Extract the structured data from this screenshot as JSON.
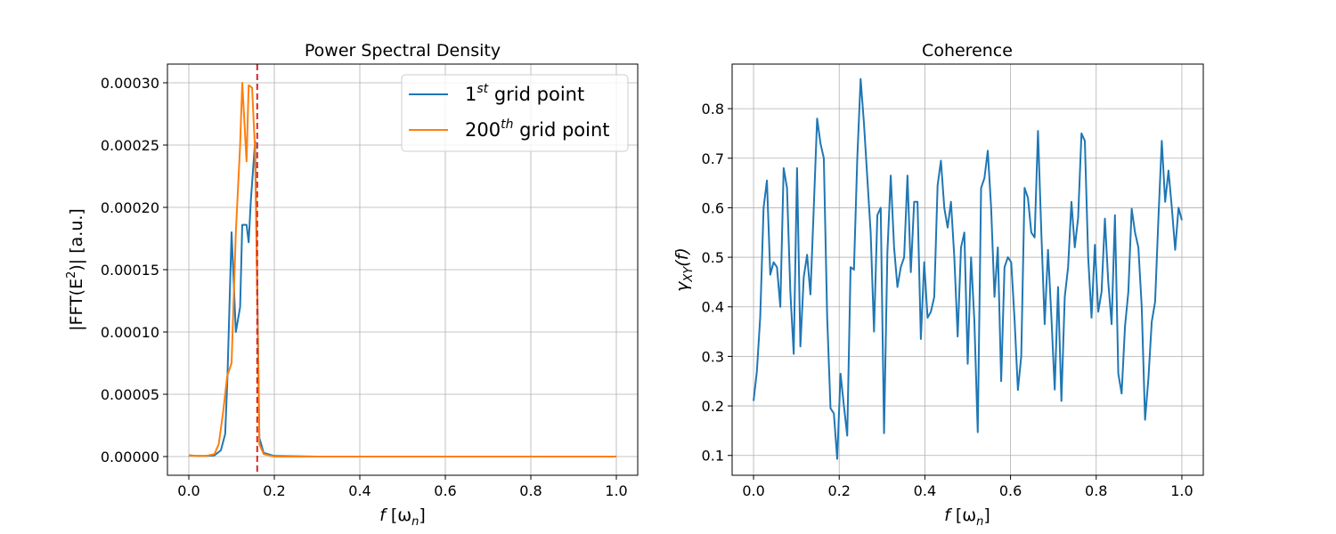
{
  "chart_data": [
    {
      "type": "line",
      "title": "Power Spectral Density",
      "xlabel": {
        "base": "f",
        "main": "[ω",
        "sub": "n",
        "end": "]"
      },
      "ylabel": {
        "pre": "|FFT(E",
        "sup": "2",
        "post": ")| [a.u.]"
      },
      "xlim": [
        -0.05,
        1.05
      ],
      "ylim": [
        -1.5e-05,
        0.000315
      ],
      "x_ticks": [
        0.0,
        0.2,
        0.4,
        0.6,
        0.8,
        1.0
      ],
      "x_tick_labels": [
        "0.0",
        "0.2",
        "0.4",
        "0.6",
        "0.8",
        "1.0"
      ],
      "y_ticks": [
        0,
        5e-05,
        0.0001,
        0.00015,
        0.0002,
        0.00025,
        0.0003
      ],
      "y_tick_labels": [
        "0.00000",
        "0.00005",
        "0.00010",
        "0.00015",
        "0.00020",
        "0.00025",
        "0.00030"
      ],
      "grid": true,
      "legend_position": "top-right",
      "vline": {
        "x": 0.16,
        "color": "#d62728",
        "style": "dashed"
      },
      "series": [
        {
          "legend": {
            "num": "1",
            "sup": "st",
            "rest": " grid point"
          },
          "color": "#1f77b4",
          "points": [
            [
              0.0,
              1e-06
            ],
            [
              0.02,
              5e-07
            ],
            [
              0.04,
              5e-07
            ],
            [
              0.06,
              1e-06
            ],
            [
              0.075,
              5e-06
            ],
            [
              0.085,
              1.8e-05
            ],
            [
              0.09,
              6e-05
            ],
            [
              0.095,
              0.00012
            ],
            [
              0.1,
              0.00018
            ],
            [
              0.11,
              0.0001
            ],
            [
              0.12,
              0.00012
            ],
            [
              0.125,
              0.000186
            ],
            [
              0.135,
              0.000186
            ],
            [
              0.14,
              0.000172
            ],
            [
              0.145,
              0.000205
            ],
            [
              0.155,
              0.000253
            ],
            [
              0.16,
              0.00014
            ],
            [
              0.165,
              1.5e-05
            ],
            [
              0.175,
              3e-06
            ],
            [
              0.2,
              5e-07
            ],
            [
              0.3,
              0.0
            ],
            [
              1.0,
              0.0
            ]
          ]
        },
        {
          "legend": {
            "num": "200",
            "sup": "th",
            "rest": " grid point"
          },
          "color": "#ff7f0e",
          "points": [
            [
              0.0,
              1e-06
            ],
            [
              0.02,
              5e-07
            ],
            [
              0.04,
              5e-07
            ],
            [
              0.06,
              2e-06
            ],
            [
              0.07,
              1e-05
            ],
            [
              0.08,
              3.5e-05
            ],
            [
              0.09,
              6.5e-05
            ],
            [
              0.1,
              7.5e-05
            ],
            [
              0.11,
              0.00018
            ],
            [
              0.12,
              0.00025
            ],
            [
              0.125,
              0.0003
            ],
            [
              0.135,
              0.000237
            ],
            [
              0.14,
              0.000298
            ],
            [
              0.148,
              0.000296
            ],
            [
              0.155,
              0.000245
            ],
            [
              0.16,
              0.00013
            ],
            [
              0.165,
              1e-05
            ],
            [
              0.175,
              2e-06
            ],
            [
              0.2,
              0.0
            ],
            [
              0.3,
              0.0
            ],
            [
              1.0,
              0.0
            ]
          ]
        }
      ]
    },
    {
      "type": "line",
      "title": "Coherence",
      "xlabel": {
        "base": "f",
        "main": "[ω",
        "sub": "n",
        "end": "]"
      },
      "ylabel": {
        "pre": "γ",
        "sub": "XY",
        "post": "(f)"
      },
      "xlim": [
        -0.05,
        1.05
      ],
      "ylim": [
        0.06,
        0.89
      ],
      "x_ticks": [
        0.0,
        0.2,
        0.4,
        0.6,
        0.8,
        1.0
      ],
      "x_tick_labels": [
        "0.0",
        "0.2",
        "0.4",
        "0.6",
        "0.8",
        "1.0"
      ],
      "y_ticks": [
        0.1,
        0.2,
        0.3,
        0.4,
        0.5,
        0.6,
        0.7,
        0.8
      ],
      "y_tick_labels": [
        "0.1",
        "0.2",
        "0.3",
        "0.4",
        "0.5",
        "0.6",
        "0.7",
        "0.8"
      ],
      "grid": true,
      "series": [
        {
          "color": "#1f77b4",
          "x_start": 0.0,
          "x_step": 0.0078125,
          "values": [
            0.21,
            0.27,
            0.38,
            0.6,
            0.655,
            0.465,
            0.49,
            0.48,
            0.4,
            0.68,
            0.64,
            0.43,
            0.305,
            0.68,
            0.32,
            0.46,
            0.505,
            0.425,
            0.6,
            0.78,
            0.73,
            0.7,
            0.38,
            0.195,
            0.185,
            0.093,
            0.265,
            0.2,
            0.14,
            0.48,
            0.475,
            0.7,
            0.86,
            0.77,
            0.66,
            0.55,
            0.35,
            0.585,
            0.6,
            0.145,
            0.51,
            0.665,
            0.52,
            0.44,
            0.48,
            0.5,
            0.665,
            0.47,
            0.612,
            0.612,
            0.335,
            0.49,
            0.378,
            0.39,
            0.42,
            0.645,
            0.695,
            0.6,
            0.56,
            0.612,
            0.5,
            0.34,
            0.52,
            0.55,
            0.285,
            0.5,
            0.37,
            0.147,
            0.64,
            0.66,
            0.715,
            0.6,
            0.42,
            0.52,
            0.25,
            0.48,
            0.5,
            0.49,
            0.375,
            0.232,
            0.3,
            0.64,
            0.62,
            0.55,
            0.54,
            0.755,
            0.55,
            0.365,
            0.515,
            0.38,
            0.233,
            0.44,
            0.21,
            0.42,
            0.48,
            0.612,
            0.52,
            0.58,
            0.75,
            0.735,
            0.5,
            0.378,
            0.525,
            0.39,
            0.43,
            0.578,
            0.45,
            0.365,
            0.585,
            0.265,
            0.225,
            0.36,
            0.43,
            0.598,
            0.55,
            0.52,
            0.4,
            0.172,
            0.255,
            0.37,
            0.41,
            0.58,
            0.735,
            0.612,
            0.675,
            0.6,
            0.515,
            0.6,
            0.575
          ]
        }
      ]
    }
  ]
}
